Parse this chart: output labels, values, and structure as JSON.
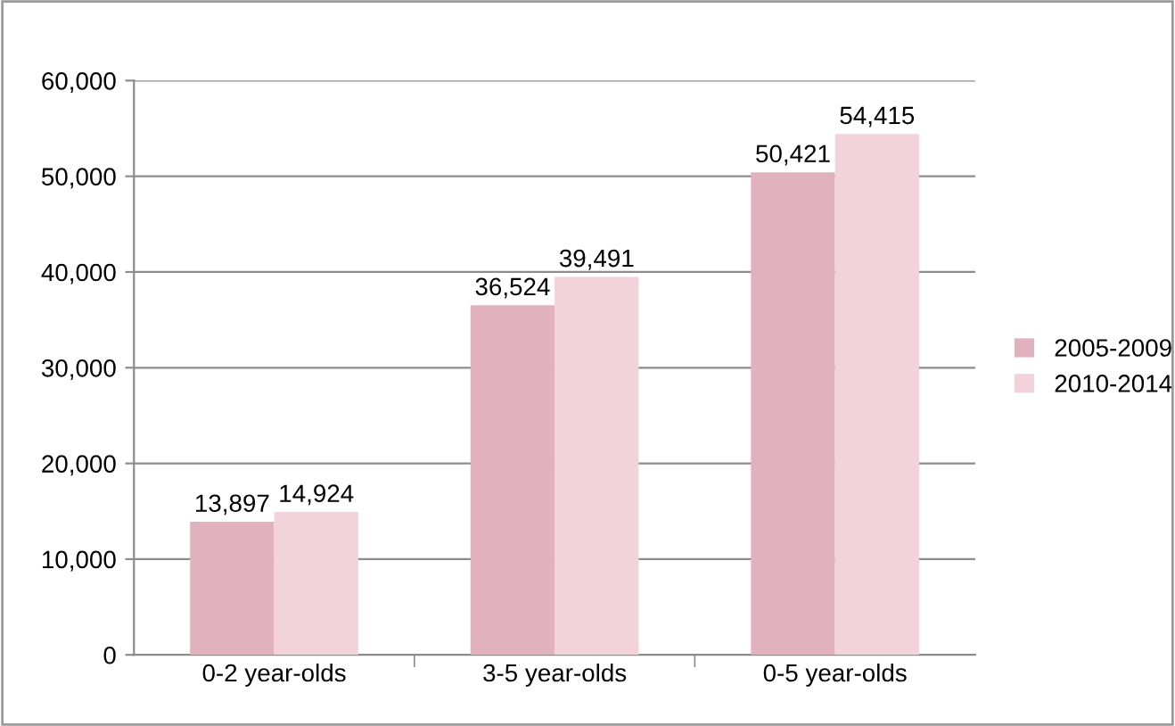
{
  "chart_data": {
    "type": "bar",
    "categories": [
      "0-2 year-olds",
      "3-5 year-olds",
      "0-5 year-olds"
    ],
    "series": [
      {
        "name": "2005-2009",
        "color": "#e2b1c0",
        "values": [
          13897,
          36524,
          50421
        ],
        "value_labels": [
          "13,897",
          "36,524",
          "50,421"
        ]
      },
      {
        "name": "2010-2014",
        "color": "#f2d3dc",
        "values": [
          14924,
          39491,
          54415
        ],
        "value_labels": [
          "14,924",
          "39,491",
          "54,415"
        ]
      }
    ],
    "ylim": [
      0,
      60000
    ],
    "yticks": [
      {
        "value": 0,
        "label": "0"
      },
      {
        "value": 10000,
        "label": "10,000"
      },
      {
        "value": 20000,
        "label": "20,000"
      },
      {
        "value": 30000,
        "label": "30,000"
      },
      {
        "value": 40000,
        "label": "40,000"
      },
      {
        "value": 50000,
        "label": "50,000"
      },
      {
        "value": 60000,
        "label": "60,000"
      }
    ],
    "grid": "y",
    "legend": "right"
  }
}
